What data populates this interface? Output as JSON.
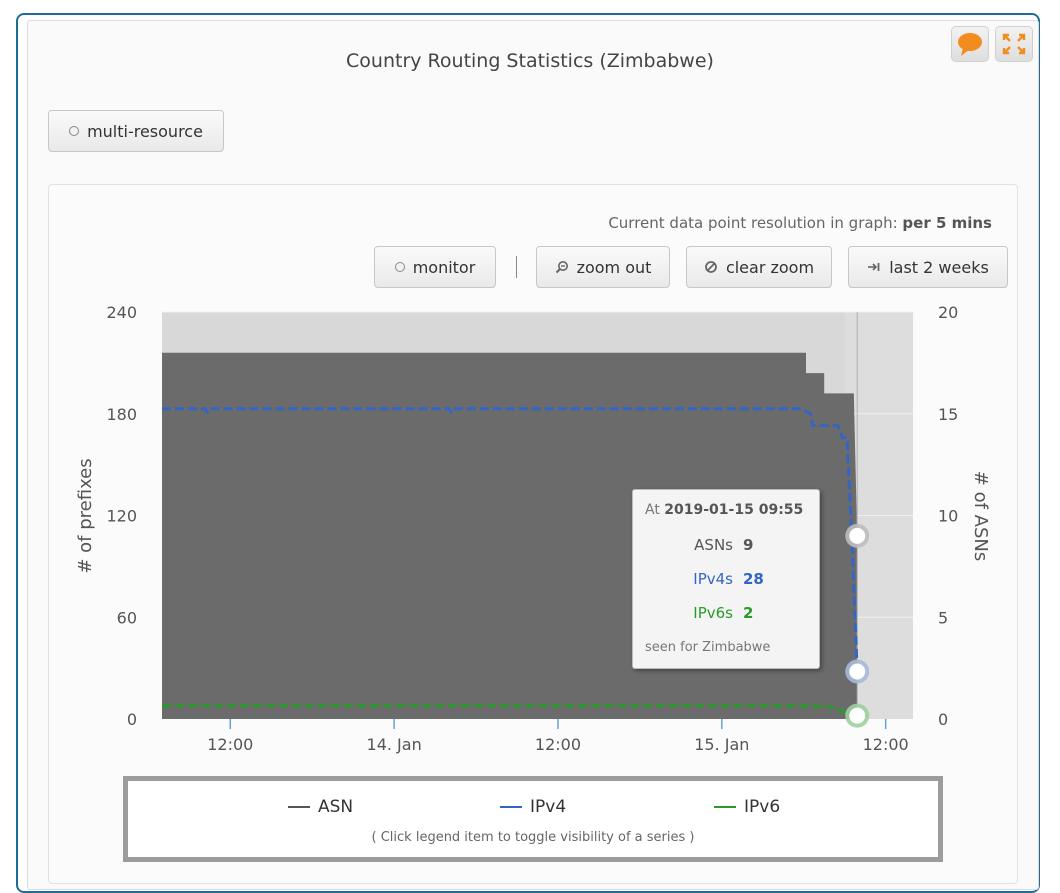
{
  "header": {
    "title": "Country Routing Statistics (Zimbabwe)",
    "comment_icon": "speech-bubble-icon",
    "fullscreen_icon": "expand-icon"
  },
  "buttons": {
    "multi_resource": "multi-resource",
    "monitor": "monitor",
    "zoom_out": "zoom out",
    "clear_zoom": "clear zoom",
    "last_2_weeks": "last 2 weeks"
  },
  "resolution": {
    "label": "Current data point resolution in graph:",
    "value": "per 5 mins"
  },
  "tooltip": {
    "at_label": "At",
    "timestamp": "2019-01-15 09:55",
    "rows": [
      {
        "label": "ASNs",
        "value": "9",
        "color": "#555555"
      },
      {
        "label": "IPv4s",
        "value": "28",
        "color": "#3465c4"
      },
      {
        "label": "IPv6s",
        "value": "2",
        "color": "#2a9a2a"
      }
    ],
    "footer": "seen for Zimbabwe"
  },
  "legend": {
    "items": [
      {
        "label": "ASN",
        "color": "#555555"
      },
      {
        "label": "IPv4",
        "color": "#3465c4"
      },
      {
        "label": "IPv6",
        "color": "#2a9a2a"
      }
    ],
    "hint": "( Click legend item to toggle visibility of a series )"
  },
  "chart_data": {
    "type": "area",
    "x_tick_labels": [
      "12:00",
      "14. Jan",
      "12:00",
      "15. Jan",
      "12:00"
    ],
    "x_ticks": [
      "2019-01-13 12:00",
      "2019-01-14 00:00",
      "2019-01-14 12:00",
      "2019-01-15 00:00",
      "2019-01-15 12:00"
    ],
    "y_left_label": "# of prefixes",
    "y_left_ticks": [
      0,
      60,
      120,
      180,
      240
    ],
    "y_left_lim": [
      0,
      240
    ],
    "y_right_label": "# of ASNs",
    "y_right_ticks": [
      0,
      5,
      10,
      15,
      20
    ],
    "y_right_lim": [
      0,
      20
    ],
    "x_range": [
      "2019-01-13 07:00",
      "2019-01-15 14:00"
    ],
    "highlight_time": "2019-01-15 09:55",
    "series": [
      {
        "name": "ASN",
        "axis": "right",
        "style": "area",
        "color": "#6b6b6b",
        "points": [
          [
            "2019-01-13 07:00",
            18
          ],
          [
            "2019-01-15 06:10",
            18
          ],
          [
            "2019-01-15 06:10",
            17
          ],
          [
            "2019-01-15 07:30",
            17
          ],
          [
            "2019-01-15 07:30",
            16
          ],
          [
            "2019-01-15 09:40",
            16
          ],
          [
            "2019-01-15 09:55",
            9
          ]
        ]
      },
      {
        "name": "IPv4",
        "axis": "left",
        "style": "dashed",
        "color": "#3465c4",
        "points": [
          [
            "2019-01-13 07:00",
            183
          ],
          [
            "2019-01-13 10:10",
            183
          ],
          [
            "2019-01-13 10:20",
            181
          ],
          [
            "2019-01-13 10:30",
            183
          ],
          [
            "2019-01-14 04:00",
            183
          ],
          [
            "2019-01-14 04:10",
            181
          ],
          [
            "2019-01-14 04:20",
            183
          ],
          [
            "2019-01-15 05:50",
            183
          ],
          [
            "2019-01-15 06:30",
            180
          ],
          [
            "2019-01-15 06:40",
            173
          ],
          [
            "2019-01-15 08:30",
            173
          ],
          [
            "2019-01-15 08:50",
            166
          ],
          [
            "2019-01-15 09:10",
            166
          ],
          [
            "2019-01-15 09:30",
            110
          ],
          [
            "2019-01-15 09:55",
            28
          ]
        ]
      },
      {
        "name": "IPv6",
        "axis": "left",
        "style": "dashed",
        "color": "#2a9a2a",
        "points": [
          [
            "2019-01-13 07:00",
            8
          ],
          [
            "2019-01-15 06:00",
            8
          ],
          [
            "2019-01-15 08:00",
            7
          ],
          [
            "2019-01-15 09:55",
            2
          ]
        ]
      }
    ]
  }
}
